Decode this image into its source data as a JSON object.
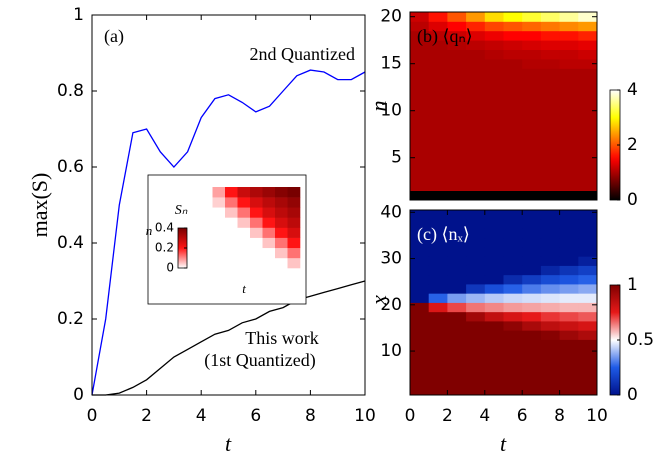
{
  "chart_data": [
    {
      "type": "line",
      "xlabel": "t",
      "ylabel": "max(S)",
      "xlim": [
        0,
        10
      ],
      "ylim": [
        0,
        1
      ],
      "xticks": [
        0,
        2,
        4,
        6,
        8,
        10
      ],
      "yticks": [
        0,
        0.2,
        0.4,
        0.6,
        0.8,
        1
      ],
      "annotations": [
        "(a)",
        "2nd Quantized",
        "This work",
        "(1st Quantized)"
      ],
      "x": [
        0,
        0.5,
        1,
        1.5,
        2,
        2.5,
        3,
        3.5,
        4,
        4.5,
        5,
        5.5,
        6,
        6.5,
        7,
        7.5,
        8,
        8.5,
        9,
        9.5,
        10
      ],
      "series": [
        {
          "color": "#0000ff",
          "values": [
            0,
            0.2,
            0.5,
            0.69,
            0.7,
            0.64,
            0.6,
            0.64,
            0.73,
            0.78,
            0.79,
            0.77,
            0.745,
            0.76,
            0.8,
            0.84,
            0.855,
            0.85,
            0.83,
            0.83,
            0.85
          ]
        },
        {
          "color": "#000000",
          "values": [
            0,
            0,
            0.005,
            0.02,
            0.04,
            0.07,
            0.1,
            0.12,
            0.14,
            0.16,
            0.17,
            0.19,
            0.2,
            0.22,
            0.23,
            0.25,
            0.26,
            0.27,
            0.28,
            0.29,
            0.3
          ]
        }
      ]
    },
    {
      "type": "heatmap",
      "xlabel": "t",
      "ylabel": "n",
      "colorbar_label": "Sₙ",
      "colormap": "white-red",
      "clim": [
        0,
        0.4
      ],
      "cticks": [
        0,
        0.2,
        0.4
      ],
      "z": [
        [
          0,
          0,
          0,
          0,
          0,
          0,
          0,
          0.05
        ],
        [
          0,
          0,
          0,
          0,
          0,
          0,
          0.05,
          0.12
        ],
        [
          0,
          0,
          0,
          0,
          0,
          0.05,
          0.12,
          0.2
        ],
        [
          0,
          0,
          0,
          0,
          0.05,
          0.12,
          0.2,
          0.26
        ],
        [
          0,
          0,
          0,
          0.05,
          0.12,
          0.2,
          0.26,
          0.3
        ],
        [
          0,
          0,
          0.05,
          0.12,
          0.2,
          0.26,
          0.3,
          0.33
        ],
        [
          0,
          0.04,
          0.12,
          0.2,
          0.26,
          0.3,
          0.33,
          0.36
        ],
        [
          0,
          0.08,
          0.2,
          0.28,
          0.32,
          0.35,
          0.38,
          0.4
        ]
      ]
    },
    {
      "type": "heatmap",
      "title": "(b) ⟨qₙ⟩",
      "ylabel": "n",
      "colormap": "hot",
      "xlim": [
        0,
        10
      ],
      "ylim": [
        0.5,
        20.5
      ],
      "yticks": [
        5,
        10,
        15,
        20
      ],
      "clim": [
        0,
        4
      ],
      "cticks": [
        0,
        2,
        4
      ],
      "x": [
        0.5,
        1.5,
        2.5,
        3.5,
        4.5,
        5.5,
        6.5,
        7.5,
        8.5,
        9.5
      ],
      "y": [
        1,
        2,
        3,
        4,
        5,
        6,
        7,
        8,
        9,
        10,
        11,
        12,
        13,
        14,
        15,
        16,
        17,
        18,
        19,
        20
      ],
      "z": [
        [
          0,
          0,
          0,
          0,
          0,
          0,
          0,
          0,
          0,
          0
        ],
        [
          1,
          1,
          1,
          1,
          1,
          1,
          1,
          1,
          1,
          1
        ],
        [
          1,
          1,
          1,
          1,
          1,
          1,
          1,
          1,
          1,
          1
        ],
        [
          1,
          1,
          1,
          1,
          1,
          1,
          1,
          1,
          1,
          1
        ],
        [
          1,
          1,
          1,
          1,
          1,
          1,
          1,
          1,
          1,
          1
        ],
        [
          1,
          1,
          1,
          1,
          1,
          1,
          1,
          1,
          1,
          1
        ],
        [
          1,
          1,
          1,
          1,
          1,
          1,
          1,
          1,
          1,
          1
        ],
        [
          1,
          1,
          1,
          1,
          1,
          1,
          1,
          1,
          1,
          1
        ],
        [
          1,
          1,
          1,
          1,
          1,
          1,
          1,
          1,
          1,
          1
        ],
        [
          1,
          1,
          1,
          1,
          1,
          1,
          1,
          1,
          1,
          1
        ],
        [
          1,
          1,
          1,
          1,
          1,
          1,
          1,
          1,
          1,
          1
        ],
        [
          1,
          1,
          1,
          1,
          1,
          1,
          1,
          1,
          1,
          1
        ],
        [
          1,
          1,
          1,
          1,
          1,
          1,
          1,
          1,
          1,
          1
        ],
        [
          1,
          1,
          1,
          1,
          1,
          1,
          1,
          1,
          1,
          1
        ],
        [
          1,
          1,
          1,
          1,
          1,
          1,
          1.05,
          1.05,
          1.1,
          1.1
        ],
        [
          1,
          1,
          1,
          1,
          1.05,
          1.1,
          1.1,
          1.15,
          1.15,
          1.2
        ],
        [
          1,
          1,
          1.05,
          1.1,
          1.15,
          1.2,
          1.25,
          1.3,
          1.3,
          1.35
        ],
        [
          1,
          1.1,
          1.2,
          1.3,
          1.4,
          1.5,
          1.5,
          1.6,
          1.6,
          1.7
        ],
        [
          1.1,
          1.3,
          1.5,
          1.7,
          1.9,
          2,
          2.1,
          2.2,
          2.3,
          2.4
        ],
        [
          1.2,
          1.6,
          2,
          2.4,
          2.8,
          3,
          3.2,
          3.4,
          3.6,
          3.8
        ]
      ]
    },
    {
      "type": "heatmap",
      "title": "(c) ⟨nₓ⟩",
      "xlabel": "t",
      "ylabel": "x",
      "colormap": "blue-white-red",
      "xlim": [
        0,
        10
      ],
      "ylim": [
        0.5,
        40.5
      ],
      "xticks": [
        0,
        2,
        4,
        6,
        8,
        10
      ],
      "yticks": [
        10,
        20,
        30,
        40
      ],
      "clim": [
        0,
        1
      ],
      "cticks": [
        0,
        0.5,
        1
      ],
      "x": [
        0.5,
        1.5,
        2.5,
        3.5,
        4.5,
        5.5,
        6.5,
        7.5,
        8.5,
        9.5
      ],
      "y": [
        1.5,
        3.5,
        5.5,
        7.5,
        9.5,
        11.5,
        13.5,
        15.5,
        17.5,
        19.5,
        21.5,
        23.5,
        25.5,
        27.5,
        29.5,
        31.5,
        33.5,
        35.5,
        37.5,
        39.5
      ],
      "z": [
        [
          1,
          1,
          1,
          1,
          1,
          1,
          1,
          1,
          1,
          1
        ],
        [
          1,
          1,
          1,
          1,
          1,
          1,
          1,
          1,
          1,
          1
        ],
        [
          1,
          1,
          1,
          1,
          1,
          1,
          1,
          1,
          1,
          1
        ],
        [
          1,
          1,
          1,
          1,
          1,
          1,
          1,
          1,
          1,
          1
        ],
        [
          1,
          1,
          1,
          1,
          1,
          1,
          1,
          1,
          1,
          1
        ],
        [
          1,
          1,
          1,
          1,
          1,
          1,
          1,
          1,
          1,
          1
        ],
        [
          1,
          1,
          1,
          1,
          1,
          1,
          1,
          0.98,
          0.93,
          0.89
        ],
        [
          1,
          1,
          1,
          1,
          1,
          0.96,
          0.9,
          0.85,
          0.82,
          0.79
        ],
        [
          1,
          1,
          1,
          0.92,
          0.84,
          0.79,
          0.75,
          0.72,
          0.7,
          0.68
        ],
        [
          1,
          0.78,
          0.7,
          0.65,
          0.63,
          0.61,
          0.6,
          0.59,
          0.58,
          0.58
        ],
        [
          0,
          0.26,
          0.35,
          0.39,
          0.42,
          0.44,
          0.45,
          0.46,
          0.47,
          0.47
        ],
        [
          0,
          0,
          0,
          0.13,
          0.21,
          0.26,
          0.3,
          0.33,
          0.35,
          0.37
        ],
        [
          0,
          0,
          0,
          0,
          0,
          0.09,
          0.15,
          0.2,
          0.23,
          0.26
        ],
        [
          0,
          0,
          0,
          0,
          0,
          0,
          0,
          0.07,
          0.12,
          0.16
        ],
        [
          0,
          0,
          0,
          0,
          0,
          0,
          0,
          0,
          0,
          0.05
        ],
        [
          0,
          0,
          0,
          0,
          0,
          0,
          0,
          0,
          0,
          0
        ],
        [
          0,
          0,
          0,
          0,
          0,
          0,
          0,
          0,
          0,
          0
        ],
        [
          0,
          0,
          0,
          0,
          0,
          0,
          0,
          0,
          0,
          0
        ],
        [
          0,
          0,
          0,
          0,
          0,
          0,
          0,
          0,
          0,
          0
        ],
        [
          0,
          0,
          0,
          0,
          0,
          0,
          0,
          0,
          0,
          0
        ]
      ]
    }
  ]
}
